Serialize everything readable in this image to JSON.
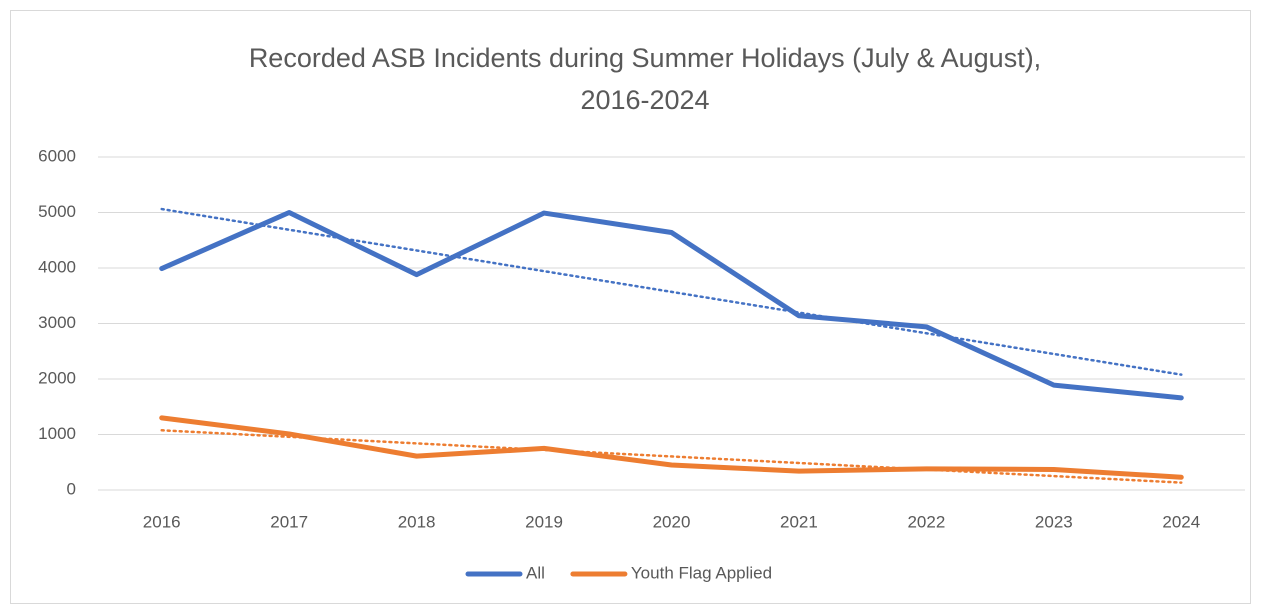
{
  "chart_data": {
    "type": "line",
    "title": [
      "Recorded ASB Incidents during Summer Holidays (July & August),",
      "2016-2024"
    ],
    "categories": [
      "2016",
      "2017",
      "2018",
      "2019",
      "2020",
      "2021",
      "2022",
      "2023",
      "2024"
    ],
    "series": [
      {
        "name": "All",
        "color": "#4472c4",
        "values": [
          3990,
          5000,
          3880,
          4990,
          4640,
          3140,
          2940,
          1890,
          1660
        ]
      },
      {
        "name": "Youth Flag Applied",
        "color": "#ed7d31",
        "values": [
          1300,
          1010,
          610,
          750,
          450,
          340,
          380,
          370,
          230
        ]
      }
    ],
    "ylim": [
      0,
      6000
    ],
    "yticks": [
      0,
      1000,
      2000,
      3000,
      4000,
      5000,
      6000
    ],
    "grid": true,
    "trendline": "linear",
    "legend": "bottom"
  }
}
